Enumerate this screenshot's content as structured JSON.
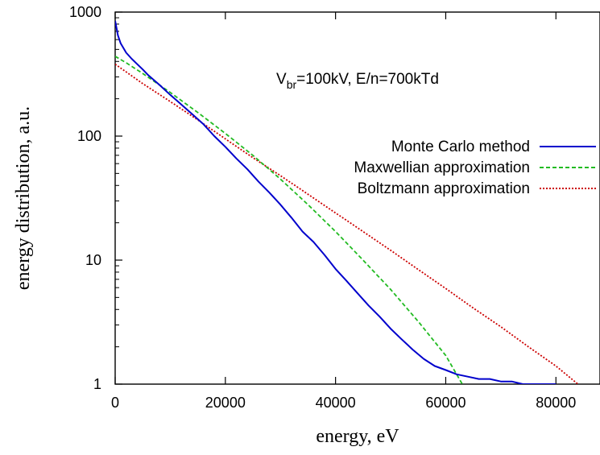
{
  "chart_data": {
    "type": "line",
    "title": "",
    "annotation": {
      "prefix": "V",
      "subscript": "br",
      "suffix": "=100kV, E/n=700kTd"
    },
    "xlabel": "energy, eV",
    "ylabel": "energy distribution, a.u.",
    "xlim": [
      0,
      88000
    ],
    "ylim": [
      1,
      1000
    ],
    "yscale": "log",
    "grid": false,
    "legend_position": "right",
    "x_ticks": [
      {
        "value": 0,
        "label": "0"
      },
      {
        "value": 20000,
        "label": "20000"
      },
      {
        "value": 40000,
        "label": "40000"
      },
      {
        "value": 60000,
        "label": "60000"
      },
      {
        "value": 80000,
        "label": "80000"
      }
    ],
    "y_ticks": [
      {
        "value": 1,
        "label": "1"
      },
      {
        "value": 10,
        "label": "10"
      },
      {
        "value": 100,
        "label": "100"
      },
      {
        "value": 1000,
        "label": "1000"
      }
    ],
    "series": [
      {
        "name": "Monte Carlo method",
        "color": "#0000cc",
        "style": "solid",
        "x": [
          0,
          500,
          1000,
          2000,
          3000,
          4000,
          5000,
          6000,
          8000,
          10000,
          12000,
          14000,
          16000,
          18000,
          20000,
          22000,
          24000,
          26000,
          28000,
          30000,
          32000,
          34000,
          36000,
          38000,
          40000,
          42000,
          44000,
          46000,
          48000,
          50000,
          52000,
          54000,
          56000,
          58000,
          60000,
          62000,
          64000,
          66000,
          68000,
          70000,
          72000,
          74000,
          76000,
          78000,
          80000
        ],
        "y": [
          850,
          650,
          560,
          470,
          420,
          380,
          345,
          310,
          260,
          215,
          180,
          150,
          125,
          100,
          82,
          66,
          54,
          43,
          35,
          28,
          22,
          17,
          14,
          11,
          8.5,
          6.8,
          5.4,
          4.3,
          3.5,
          2.8,
          2.3,
          1.9,
          1.6,
          1.4,
          1.3,
          1.2,
          1.15,
          1.1,
          1.1,
          1.05,
          1.05,
          1.0,
          1.0,
          1.0,
          1.0
        ]
      },
      {
        "name": "Maxwellian approximation",
        "color": "#22bb22",
        "style": "dashed",
        "x": [
          0,
          2000,
          5000,
          10000,
          15000,
          20000,
          25000,
          30000,
          35000,
          40000,
          45000,
          50000,
          55000,
          60000,
          63000
        ],
        "y": [
          440,
          390,
          320,
          225,
          155,
          105,
          70,
          45,
          28,
          17,
          10,
          5.8,
          3.2,
          1.7,
          1.0
        ]
      },
      {
        "name": "Boltzmann approximation",
        "color": "#cc0000",
        "style": "dotted",
        "x": [
          0,
          5000,
          10000,
          15000,
          20000,
          25000,
          30000,
          35000,
          40000,
          45000,
          50000,
          55000,
          60000,
          65000,
          70000,
          75000,
          80000,
          84000
        ],
        "y": [
          380,
          265,
          190,
          135,
          95,
          67,
          48,
          34,
          24,
          17,
          12,
          8.4,
          5.9,
          4.1,
          2.9,
          2.0,
          1.4,
          1.0
        ]
      }
    ]
  }
}
